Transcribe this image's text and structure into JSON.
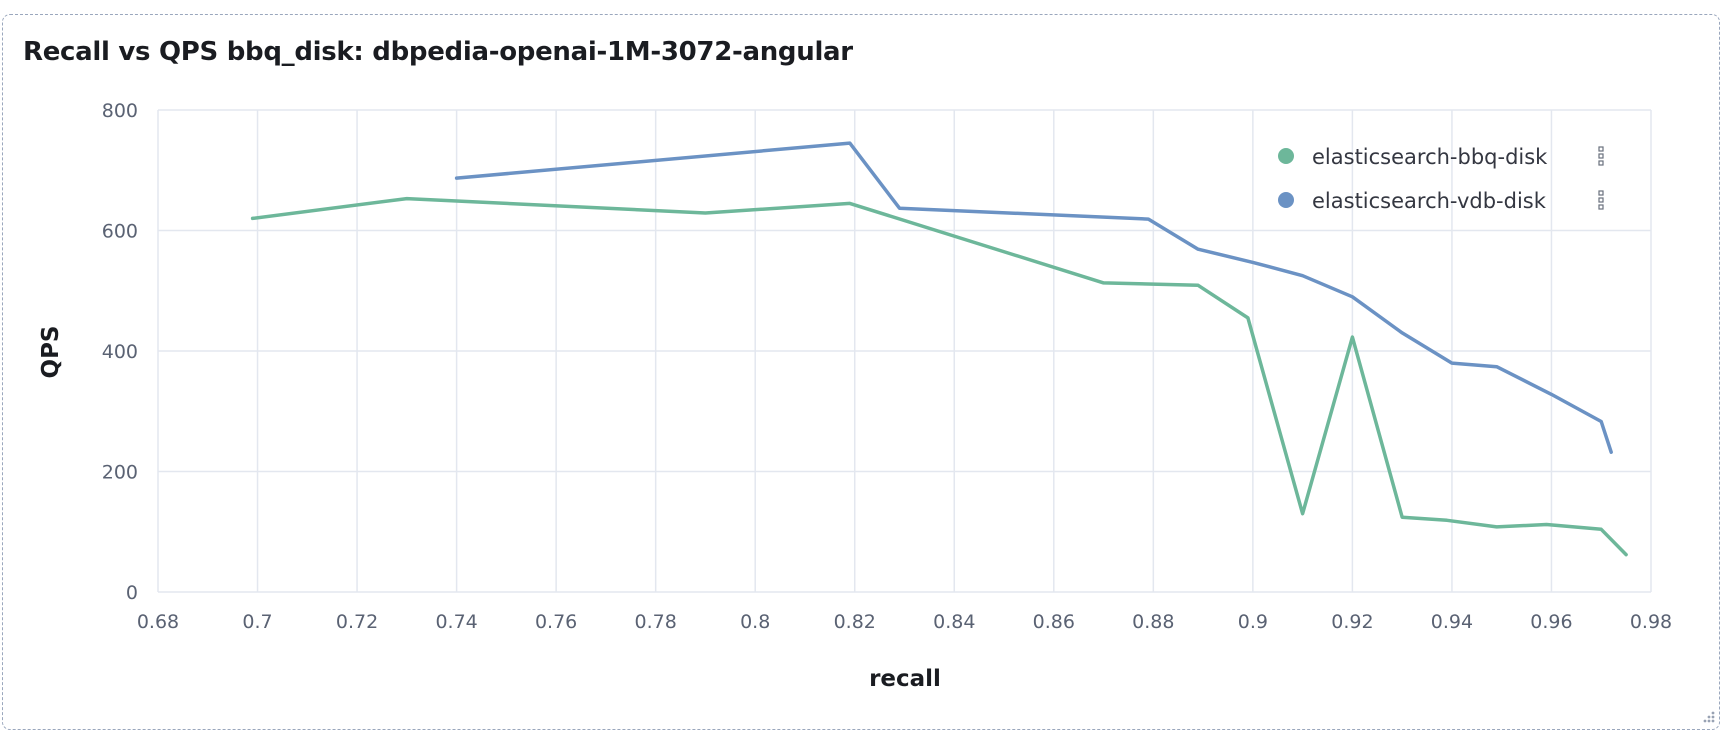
{
  "panel": {
    "title": "Recall vs QPS bbq_disk: dbpedia-openai-1M-3072-angular"
  },
  "chart_data": {
    "type": "line",
    "title": "Recall vs QPS bbq_disk: dbpedia-openai-1M-3072-angular",
    "xlabel": "recall",
    "ylabel": "QPS",
    "xlim": [
      0.68,
      0.98
    ],
    "ylim": [
      0,
      800
    ],
    "x_ticks": [
      "0.68",
      "0.7",
      "0.72",
      "0.74",
      "0.76",
      "0.78",
      "0.8",
      "0.82",
      "0.84",
      "0.86",
      "0.88",
      "0.9",
      "0.92",
      "0.94",
      "0.96",
      "0.98"
    ],
    "x_tick_values": [
      0.68,
      0.7,
      0.72,
      0.74,
      0.76,
      0.78,
      0.8,
      0.82,
      0.84,
      0.86,
      0.88,
      0.9,
      0.92,
      0.94,
      0.96,
      0.98
    ],
    "y_ticks": [
      "0",
      "200",
      "400",
      "600",
      "800"
    ],
    "y_tick_values": [
      0,
      200,
      400,
      600,
      800
    ],
    "grid": true,
    "legend_position": "top-right",
    "series": [
      {
        "name": "elasticsearch-bbq-disk",
        "color": "#6db79a",
        "points": [
          [
            0.699,
            620
          ],
          [
            0.73,
            653
          ],
          [
            0.79,
            629
          ],
          [
            0.819,
            645
          ],
          [
            0.87,
            513
          ],
          [
            0.889,
            509
          ],
          [
            0.899,
            455
          ],
          [
            0.91,
            130
          ],
          [
            0.92,
            423
          ],
          [
            0.93,
            124
          ],
          [
            0.939,
            119
          ],
          [
            0.949,
            108
          ],
          [
            0.959,
            112
          ],
          [
            0.97,
            104
          ],
          [
            0.975,
            62
          ]
        ]
      },
      {
        "name": "elasticsearch-vdb-disk",
        "color": "#6b92c4",
        "points": [
          [
            0.74,
            687
          ],
          [
            0.819,
            745
          ],
          [
            0.829,
            637
          ],
          [
            0.879,
            619
          ],
          [
            0.889,
            569
          ],
          [
            0.9,
            547
          ],
          [
            0.91,
            525
          ],
          [
            0.92,
            490
          ],
          [
            0.93,
            430
          ],
          [
            0.94,
            380
          ],
          [
            0.949,
            374
          ],
          [
            0.96,
            328
          ],
          [
            0.97,
            283
          ],
          [
            0.972,
            232
          ]
        ]
      }
    ]
  },
  "icons": {
    "legend_action": "legend-actions-icon",
    "resize": "resize-handle-icon"
  }
}
